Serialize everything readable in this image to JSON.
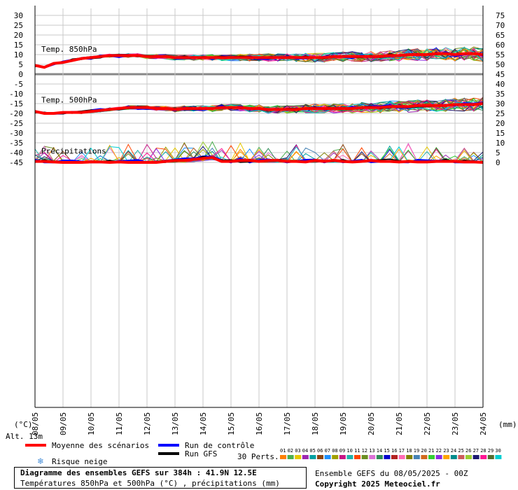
{
  "chart_data": {
    "type": "line",
    "x_ticks": [
      "09/05",
      "10/05",
      "11/05",
      "12/05",
      "13/05",
      "14/05",
      "15/05",
      "16/05",
      "17/05",
      "18/05",
      "19/05",
      "20/05",
      "21/05",
      "22/05",
      "23/05",
      "24/05"
    ],
    "x_first_tick_label": "08/05",
    "x_unit_left": "(°C)",
    "x_unit_right": "(mm)",
    "left_axis_ticks": [
      30,
      25,
      20,
      15,
      10,
      5,
      0,
      -5,
      -10,
      -15,
      -20,
      -25,
      -30,
      -35,
      -40,
      -45
    ],
    "right_axis_ticks": [
      75,
      70,
      65,
      60,
      55,
      50,
      45,
      40,
      35,
      30,
      25,
      20,
      15,
      10,
      5,
      0
    ],
    "panel_labels": {
      "t850": "Temp. 850hPa",
      "t500": "Temp. 500hPa",
      "precip": "Précipitations"
    },
    "altitude_label": "Alt. 13m",
    "series": [
      {
        "name": "Moyenne des scénarios",
        "color": "#ff0000"
      },
      {
        "name": "Run de contrôle",
        "color": "#0000ff"
      },
      {
        "name": "Run GFS",
        "color": "#000000"
      }
    ],
    "snow_label": "Risque neige",
    "perturbations_label": "30 Perts.",
    "perturbation_ids": [
      "01",
      "02",
      "03",
      "04",
      "05",
      "06",
      "07",
      "08",
      "09",
      "10",
      "11",
      "12",
      "13",
      "14",
      "15",
      "16",
      "17",
      "18",
      "19",
      "20",
      "21",
      "22",
      "23",
      "24",
      "25",
      "26",
      "27",
      "28",
      "29",
      "30"
    ],
    "perturbation_colors": [
      "#ff7f00",
      "#4caf50",
      "#e6c800",
      "#9c27b0",
      "#00a0a0",
      "#8b4513",
      "#1e90ff",
      "#a0a000",
      "#c71585",
      "#20b2aa",
      "#ff4500",
      "#6b8e23",
      "#da70d6",
      "#2e8b57",
      "#0000cd",
      "#b22222",
      "#ff69b4",
      "#808000",
      "#4682b4",
      "#d2691e",
      "#32cd32",
      "#8a2be2",
      "#ffa500",
      "#008b8b",
      "#cd5c5c",
      "#9acd32",
      "#191970",
      "#ff1493",
      "#556b2f",
      "#00ced1"
    ],
    "ensemble_mean": {
      "t850": [
        4.5,
        3.5,
        5.5,
        6,
        7,
        8,
        8.5,
        9,
        9.5,
        9.5,
        9.5,
        9.5,
        9,
        9,
        9,
        8.5,
        8.5,
        8.5,
        8.5,
        8.5,
        8.5,
        8.5,
        8.5,
        8.5,
        8.5,
        8.5,
        8.5,
        8.5,
        8.5,
        8.5,
        8.5,
        8.5,
        9,
        9,
        9,
        9,
        9,
        9,
        9.5,
        9.5,
        10,
        10,
        10,
        10.5,
        10.5,
        10,
        10.5,
        10.5,
        10
      ],
      "t500": [
        -19,
        -20,
        -20,
        -19.5,
        -19.5,
        -19.5,
        -19,
        -18.5,
        -18,
        -17.5,
        -17,
        -17,
        -17,
        -17.5,
        -17.5,
        -18,
        -17.5,
        -17.5,
        -17.5,
        -17.5,
        -17,
        -17,
        -17,
        -17.5,
        -17.5,
        -18,
        -18,
        -18,
        -18,
        -17.5,
        -17.5,
        -17.5,
        -17.5,
        -17.5,
        -17.5,
        -17,
        -17,
        -17,
        -16.5,
        -16.5,
        -16.5,
        -16,
        -16,
        -16,
        -16,
        -15.5,
        -15.5,
        -15.5,
        -15
      ],
      "precip": [
        0.5,
        0.5,
        0.2,
        0,
        0,
        0,
        0.2,
        0.2,
        0,
        0.2,
        0,
        0,
        0,
        0,
        0.5,
        1,
        1,
        1.5,
        2,
        2.5,
        0.5,
        0.5,
        1,
        1,
        0.5,
        1,
        1,
        0.5,
        0.5,
        0.2,
        1,
        0.5,
        1,
        0.5,
        0.2,
        0.5,
        1,
        0.5,
        0.5,
        0.2,
        0.5,
        0.2,
        0.2,
        0.5,
        0.5,
        0.5,
        0.2,
        0.2,
        0
      ]
    }
  },
  "footer": {
    "title": "Diagramme des ensembles GEFS sur 384h : 41.9N 12.5E",
    "subtitle": "Températures 850hPa et 500hPa (°C) , précipitations (mm)",
    "run": "Ensemble GEFS du 08/05/2025 - 00Z",
    "copyright": "Copyright 2025 Meteociel.fr"
  }
}
